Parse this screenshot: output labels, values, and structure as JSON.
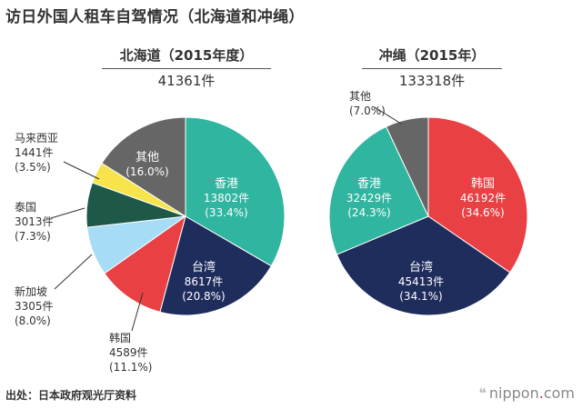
{
  "title": "访日外国人租车自驾情况（北海道和冲绳）",
  "source": "出处：日本政府观光厅资料",
  "logo": {
    "prefix": "nippon",
    "dot": ".",
    "suffix": "com"
  },
  "chart_data": [
    {
      "type": "pie",
      "title": "北海道（2015年度）",
      "total": "41361件",
      "slices": [
        {
          "name": "香港",
          "count": "13802件",
          "pct": "(33.4%)",
          "value": 33.4,
          "color": "#2fb5a0",
          "label_color": "#ffffff",
          "external": false
        },
        {
          "name": "台湾",
          "count": "8617件",
          "pct": "(20.8%)",
          "value": 20.8,
          "color": "#1f2d5c",
          "label_color": "#ffffff",
          "external": false
        },
        {
          "name": "韩国",
          "count": "4589件",
          "pct": "(11.1%)",
          "value": 11.1,
          "color": "#e84043",
          "label_color": "#333333",
          "external": true
        },
        {
          "name": "新加坡",
          "count": "3305件",
          "pct": "(8.0%)",
          "value": 8.0,
          "color": "#a6dcf5",
          "label_color": "#333333",
          "external": true
        },
        {
          "name": "泰国",
          "count": "3013件",
          "pct": "(7.3%)",
          "value": 7.3,
          "color": "#1d5849",
          "label_color": "#333333",
          "external": true
        },
        {
          "name": "马来西亚",
          "count": "1441件",
          "pct": "(3.5%)",
          "value": 3.5,
          "color": "#f7e34b",
          "label_color": "#333333",
          "external": true
        },
        {
          "name": "其他",
          "count": "",
          "pct": "(16.0%)",
          "value": 16.0,
          "color": "#666666",
          "label_color": "#ffffff",
          "external": false
        }
      ]
    },
    {
      "type": "pie",
      "title": "冲绳（2015年）",
      "total": "133318件",
      "slices": [
        {
          "name": "韩国",
          "count": "46192件",
          "pct": "(34.6%)",
          "value": 34.6,
          "color": "#e84043",
          "label_color": "#ffffff",
          "external": false
        },
        {
          "name": "台湾",
          "count": "45413件",
          "pct": "(34.1%)",
          "value": 34.1,
          "color": "#1f2d5c",
          "label_color": "#ffffff",
          "external": false
        },
        {
          "name": "香港",
          "count": "32429件",
          "pct": "(24.3%)",
          "value": 24.3,
          "color": "#2fb5a0",
          "label_color": "#ffffff",
          "external": false
        },
        {
          "name": "其他",
          "count": "",
          "pct": "(7.0%)",
          "value": 7.0,
          "color": "#666666",
          "label_color": "#333333",
          "external": true
        }
      ]
    }
  ]
}
